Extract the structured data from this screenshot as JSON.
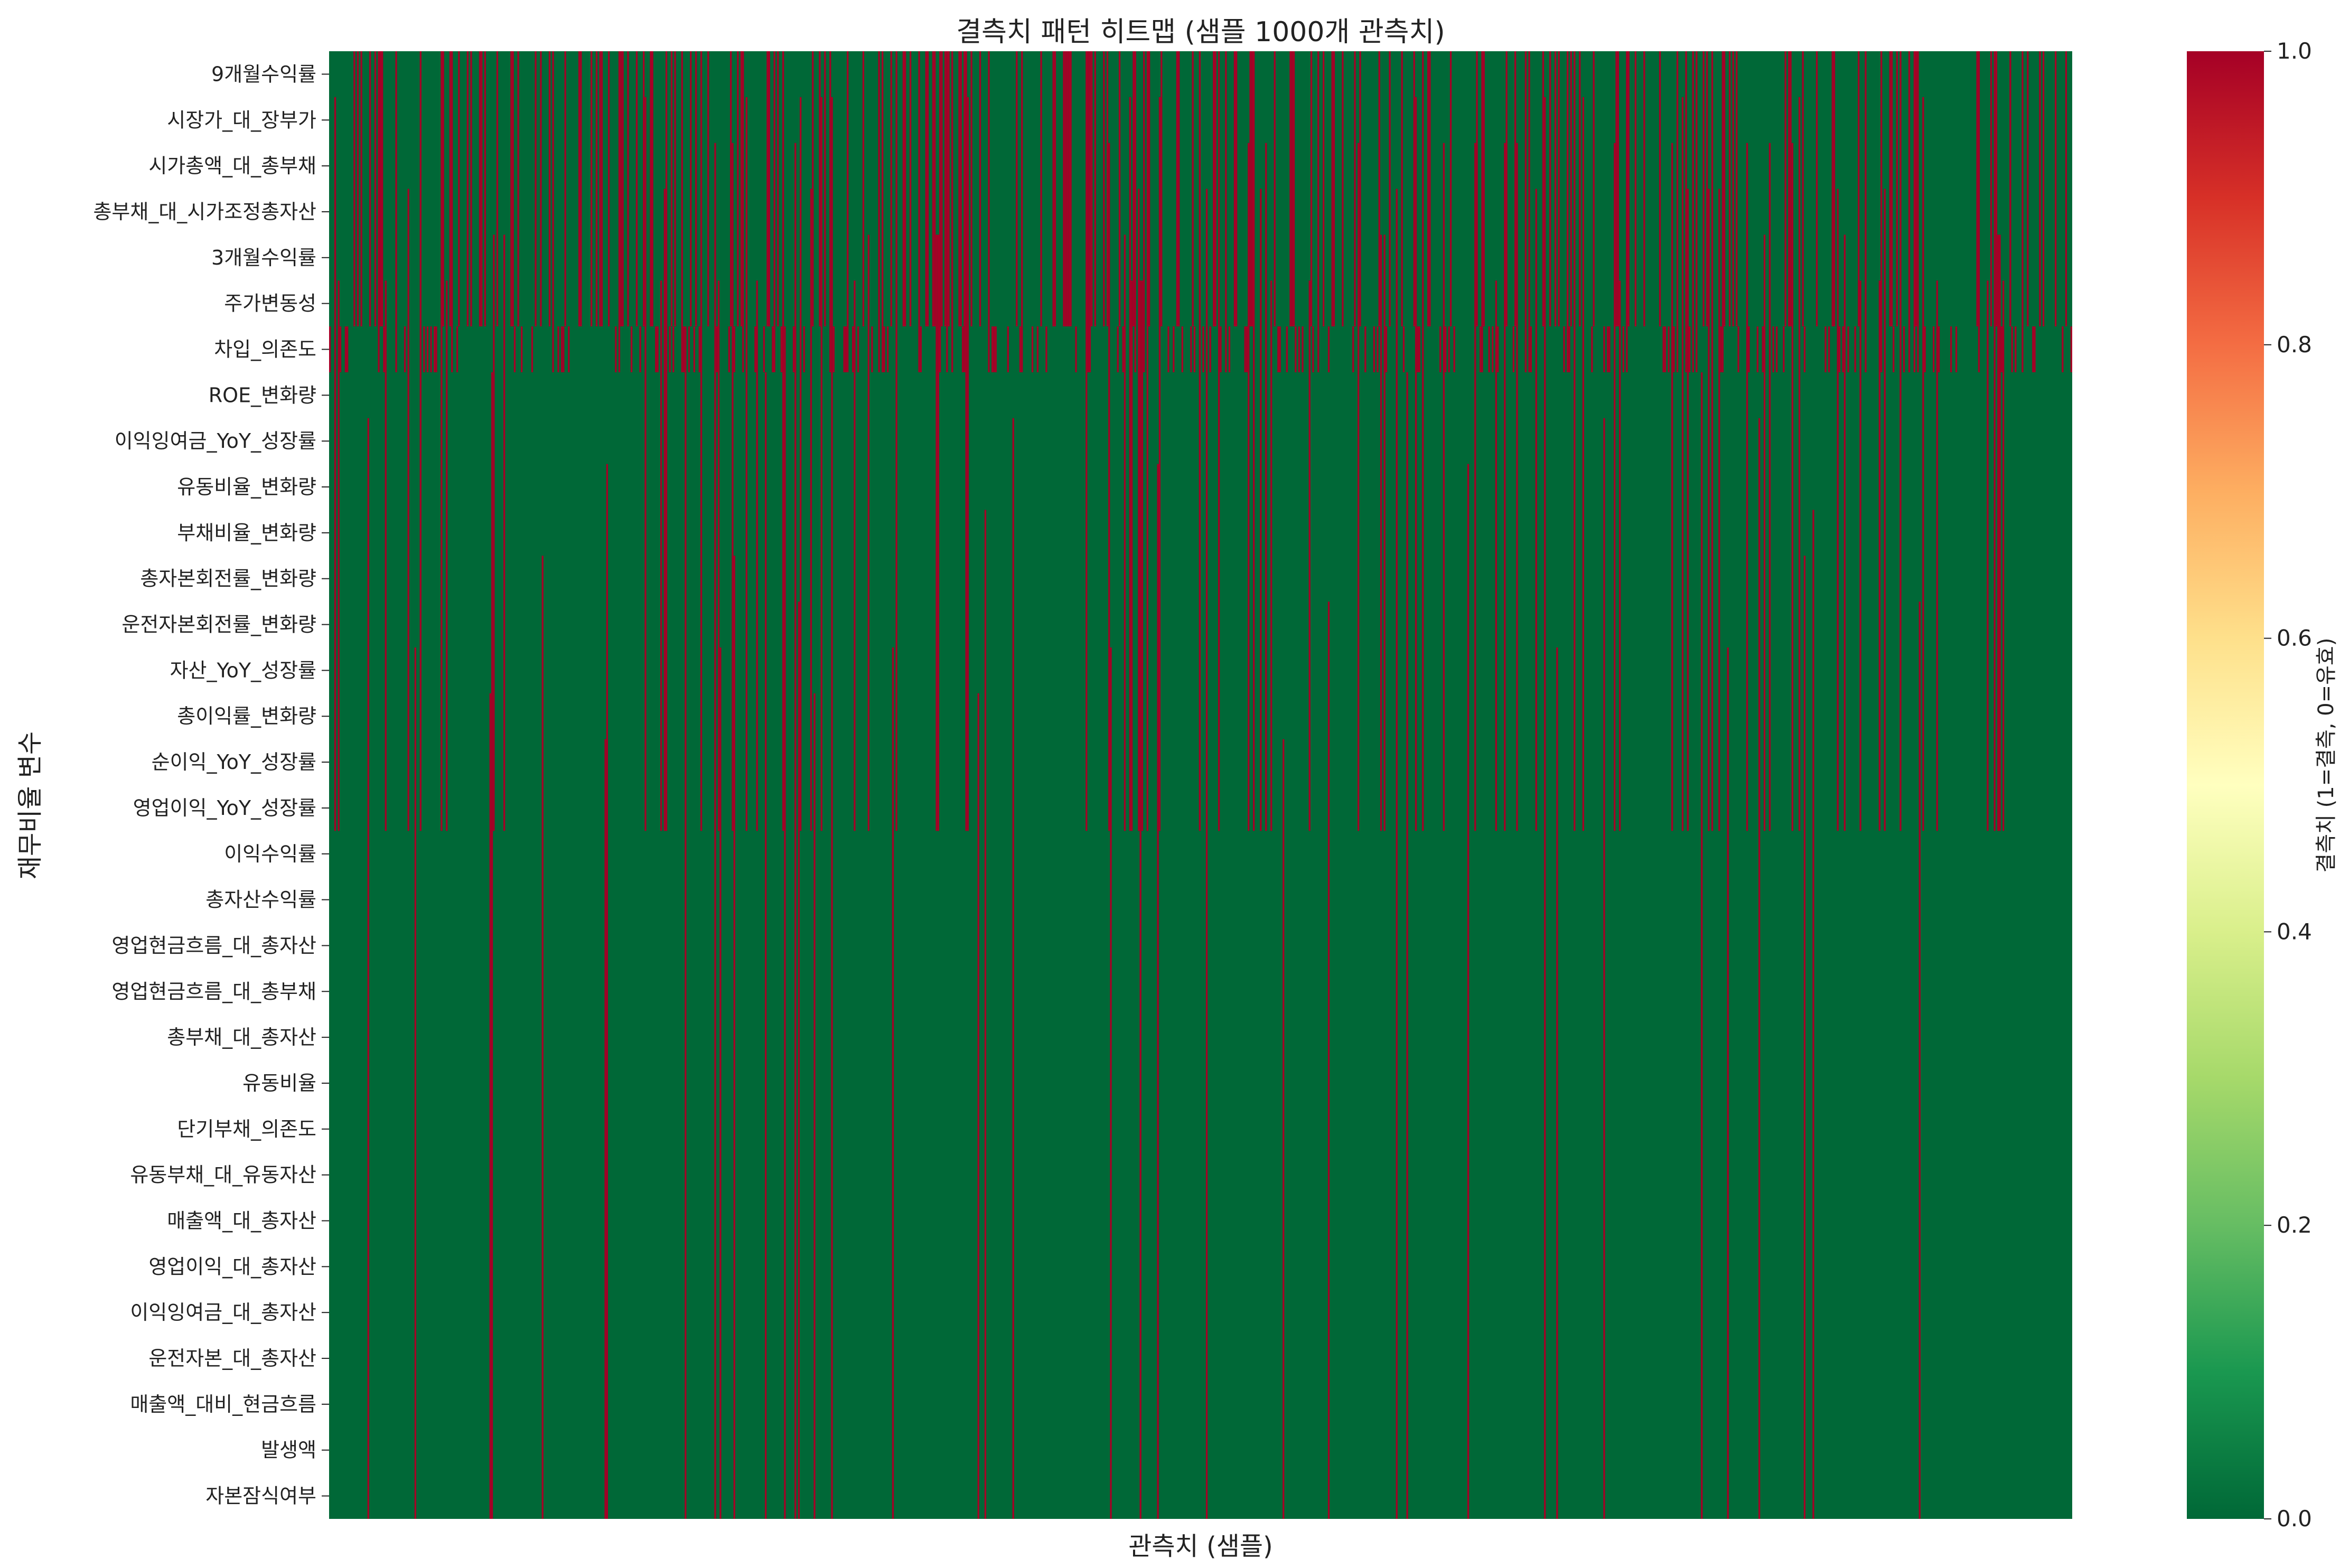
{
  "chart_data": {
    "type": "heatmap",
    "title": "결측치 패턴 히트맵 (샘플 1000개 관측치)",
    "xlabel": "관측치 (샘플)",
    "ylabel": "재무비율 변수",
    "n_observations": 1000,
    "variables": [
      "9개월수익률",
      "시장가_대_장부가",
      "시가총액_대_총부채",
      "총부채_대_시가조정총자산",
      "3개월수익률",
      "주가변동성",
      "차입_의존도",
      "ROE_변화량",
      "이익잉여금_YoY_성장률",
      "유동비율_변화량",
      "부채비율_변화량",
      "총자본회전률_변화량",
      "운전자본회전률_변화량",
      "자산_YoY_성장률",
      "총이익률_변화량",
      "순이익_YoY_성장률",
      "영업이익_YoY_성장률",
      "이익수익률",
      "총자산수익률",
      "영업현금흐름_대_총자산",
      "영업현금흐름_대_총부채",
      "총부채_대_총자산",
      "유동비율",
      "단기부채_의존도",
      "유동부채_대_유동자산",
      "매출액_대_총자산",
      "영업이익_대_총자산",
      "이익잉여금_대_총자산",
      "운전자본_대_총자산",
      "매출액_대비_현금흐름",
      "발생액",
      "자본잠식여부"
    ],
    "missing_fraction_per_group": [
      {
        "variables": "9개월수익률 ~ 주가변동성",
        "rows": [
          0,
          5
        ],
        "fraction": 0.33
      },
      {
        "variables": "차입_의존도",
        "rows": [
          6,
          6
        ],
        "fraction": 0.32
      },
      {
        "variables": "ROE_변화량 ~ 영업이익_YoY_성장률",
        "rows": [
          7,
          16
        ],
        "fraction": 0.12
      },
      {
        "variables": "이익수익률 ~ 자본잠식여부",
        "rows": [
          17,
          31
        ],
        "fraction": 0.035
      }
    ],
    "value_range": [
      0,
      1
    ],
    "colormap": {
      "name": "RdYlGn_r",
      "low": "#006837",
      "high": "#a50026"
    },
    "colorbar": {
      "label": "결측치 (1=결측, 0=유효)",
      "ticks": [
        "0.0",
        "0.2",
        "0.4",
        "0.6",
        "0.8",
        "1.0"
      ]
    },
    "grid": false
  }
}
